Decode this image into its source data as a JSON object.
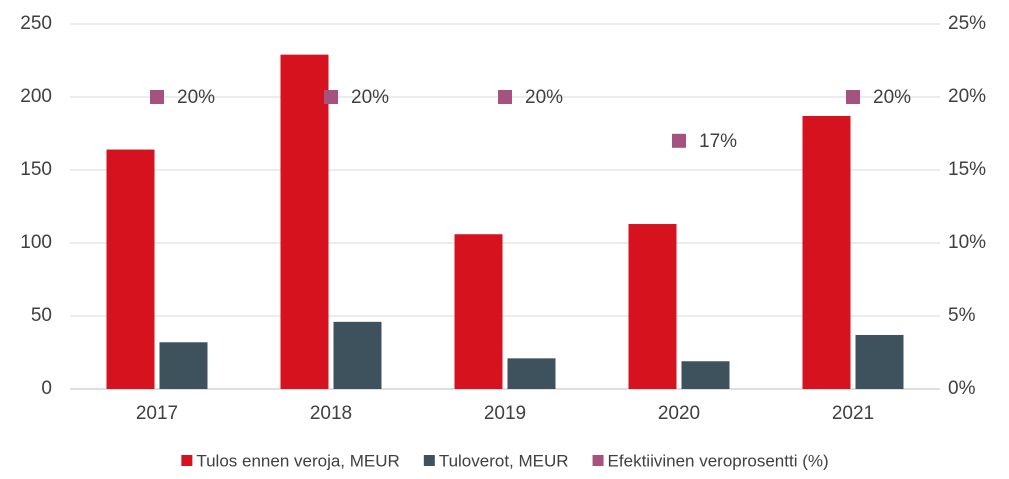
{
  "chart_data": {
    "type": "bar",
    "categories": [
      "2017",
      "2018",
      "2019",
      "2020",
      "2021"
    ],
    "series": [
      {
        "name": "Tulos ennen veroja, MEUR",
        "color": "#d7121f",
        "values": [
          164,
          229,
          106,
          113,
          187
        ]
      },
      {
        "name": "Tuloverot, MEUR",
        "color": "#3d525c",
        "values": [
          32,
          46,
          21,
          19,
          37
        ]
      },
      {
        "name": "Efektiivinen veroprosentti (%)",
        "color": "#a5527f",
        "type": "scatter",
        "axis": "y2",
        "values": [
          20,
          20,
          20,
          17,
          20
        ],
        "value_labels": [
          "20%",
          "20%",
          "20%",
          "17%",
          "20%"
        ]
      }
    ],
    "ylim": [
      0,
      250
    ],
    "yticks": [
      0,
      50,
      100,
      150,
      200,
      250
    ],
    "y2lim": [
      0,
      25
    ],
    "y2ticks": [
      {
        "value": 0,
        "label": "0%"
      },
      {
        "value": 5,
        "label": "5%"
      },
      {
        "value": 10,
        "label": "10%"
      },
      {
        "value": 15,
        "label": "15%"
      },
      {
        "value": 20,
        "label": "20%"
      },
      {
        "value": 25,
        "label": "25%"
      }
    ],
    "grid": true,
    "legend": "bottom"
  }
}
